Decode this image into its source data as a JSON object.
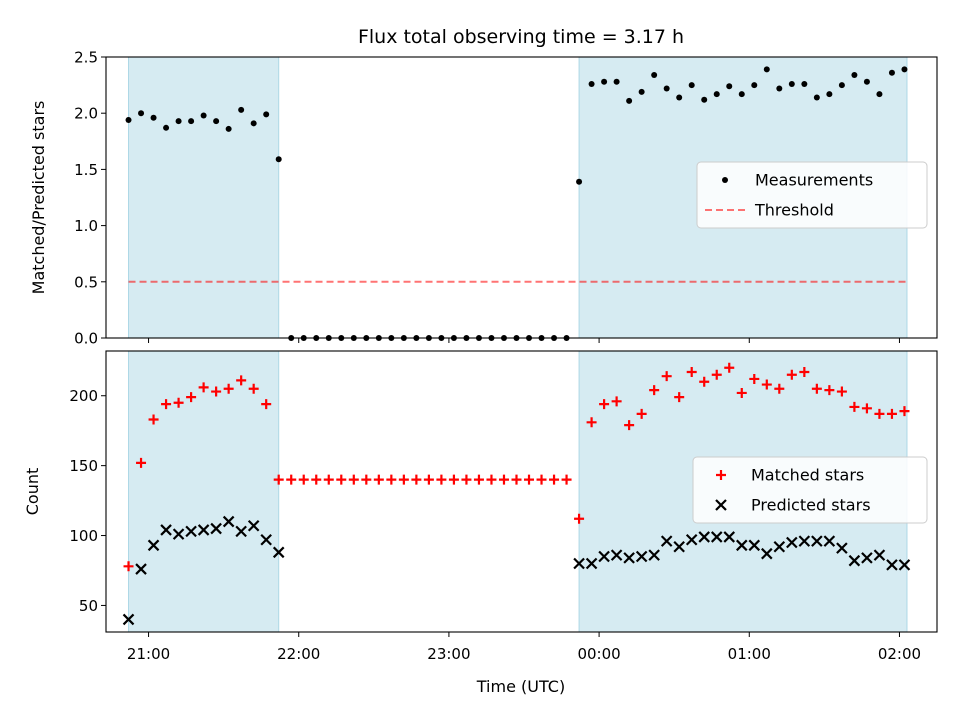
{
  "figure": {
    "title": "Flux total observing time = 3.17 h",
    "xlabel": "Time (UTC)"
  },
  "colors": {
    "band": "#add8e6",
    "band_opacity": 0.5,
    "threshold": "#ff0000",
    "matched": "#ff0000",
    "predicted": "#000000",
    "measurement": "#000000"
  },
  "chart_data": [
    {
      "type": "scatter",
      "name": "flux-ratio",
      "ylabel": "Matched/Predicted stars",
      "xlim": [
        "20:43",
        "02:15"
      ],
      "ylim": [
        0,
        2.5
      ],
      "yticks": [
        0.0,
        0.5,
        1.0,
        1.5,
        2.0,
        2.5
      ],
      "ytick_labels": [
        "0.0",
        "0.5",
        "1.0",
        "1.5",
        "2.0",
        "2.5"
      ],
      "xticks": [
        "21:00",
        "22:00",
        "23:00",
        "00:00",
        "01:00",
        "02:00"
      ],
      "xtick_labels": [],
      "shaded_intervals": [
        [
          "20:52",
          "21:52"
        ],
        [
          "23:52",
          "02:03"
        ]
      ],
      "threshold": 0.5,
      "legend": {
        "position": "right",
        "entries": [
          {
            "label": "Measurements",
            "marker": "dot"
          },
          {
            "label": "Threshold",
            "marker": "dashed-line"
          }
        ]
      },
      "series": [
        {
          "name": "Measurements",
          "x": [
            "20:52",
            "20:57",
            "21:02",
            "21:07",
            "21:12",
            "21:17",
            "21:22",
            "21:27",
            "21:32",
            "21:37",
            "21:42",
            "21:47",
            "21:52",
            "21:57",
            "22:02",
            "22:07",
            "22:12",
            "22:17",
            "22:22",
            "22:27",
            "22:32",
            "22:37",
            "22:42",
            "22:47",
            "22:52",
            "22:57",
            "23:02",
            "23:07",
            "23:12",
            "23:17",
            "23:22",
            "23:27",
            "23:32",
            "23:37",
            "23:42",
            "23:47",
            "23:52",
            "23:57",
            "00:02",
            "00:07",
            "00:12",
            "00:17",
            "00:22",
            "00:27",
            "00:32",
            "00:37",
            "00:42",
            "00:47",
            "00:52",
            "00:57",
            "01:02",
            "01:07",
            "01:12",
            "01:17",
            "01:22",
            "01:27",
            "01:32",
            "01:37",
            "01:42",
            "01:47",
            "01:52",
            "01:57",
            "02:02"
          ],
          "y": [
            1.94,
            2.0,
            1.96,
            1.87,
            1.93,
            1.93,
            1.98,
            1.93,
            1.86,
            2.03,
            1.91,
            1.99,
            1.59,
            0,
            0,
            0,
            0,
            0,
            0,
            0,
            0,
            0,
            0,
            0,
            0,
            0,
            0,
            0,
            0,
            0,
            0,
            0,
            0,
            0,
            0,
            0,
            1.39,
            2.26,
            2.28,
            2.28,
            2.11,
            2.19,
            2.34,
            2.22,
            2.14,
            2.25,
            2.12,
            2.17,
            2.24,
            2.17,
            2.25,
            2.39,
            2.22,
            2.26,
            2.26,
            2.14,
            2.17,
            2.25,
            2.34,
            2.28,
            2.17,
            2.36,
            2.39
          ]
        }
      ]
    },
    {
      "type": "scatter",
      "name": "counts",
      "ylabel": "Count",
      "xlim": [
        "20:43",
        "02:15"
      ],
      "ylim": [
        31,
        232
      ],
      "yticks": [
        50,
        100,
        150,
        200
      ],
      "ytick_labels": [
        "50",
        "100",
        "150",
        "200"
      ],
      "xticks": [
        "21:00",
        "22:00",
        "23:00",
        "00:00",
        "01:00",
        "02:00"
      ],
      "xtick_labels": [
        "21:00",
        "22:00",
        "23:00",
        "00:00",
        "01:00",
        "02:00"
      ],
      "shaded_intervals": [
        [
          "20:52",
          "21:52"
        ],
        [
          "23:52",
          "02:03"
        ]
      ],
      "legend": {
        "position": "right",
        "entries": [
          {
            "label": "Matched stars",
            "marker": "plus"
          },
          {
            "label": "Predicted stars",
            "marker": "x"
          }
        ]
      },
      "series": [
        {
          "name": "Matched stars",
          "marker": "plus",
          "x": [
            "20:52",
            "20:57",
            "21:02",
            "21:07",
            "21:12",
            "21:17",
            "21:22",
            "21:27",
            "21:32",
            "21:37",
            "21:42",
            "21:47",
            "21:52",
            "21:57",
            "22:02",
            "22:07",
            "22:12",
            "22:17",
            "22:22",
            "22:27",
            "22:32",
            "22:37",
            "22:42",
            "22:47",
            "22:52",
            "22:57",
            "23:02",
            "23:07",
            "23:12",
            "23:17",
            "23:22",
            "23:27",
            "23:32",
            "23:37",
            "23:42",
            "23:47",
            "23:52",
            "23:57",
            "00:02",
            "00:07",
            "00:12",
            "00:17",
            "00:22",
            "00:27",
            "00:32",
            "00:37",
            "00:42",
            "00:47",
            "00:52",
            "00:57",
            "01:02",
            "01:07",
            "01:12",
            "01:17",
            "01:22",
            "01:27",
            "01:32",
            "01:37",
            "01:42",
            "01:47",
            "01:52",
            "01:57",
            "02:02"
          ],
          "y": [
            78,
            152,
            183,
            194,
            195,
            199,
            206,
            203,
            205,
            211,
            205,
            194,
            140,
            140,
            140,
            140,
            140,
            140,
            140,
            140,
            140,
            140,
            140,
            140,
            140,
            140,
            140,
            140,
            140,
            140,
            140,
            140,
            140,
            140,
            140,
            140,
            112,
            181,
            194,
            196,
            179,
            187,
            204,
            214,
            199,
            217,
            210,
            215,
            220,
            202,
            212,
            208,
            205,
            215,
            217,
            205,
            204,
            203,
            192,
            191,
            187,
            187,
            189
          ]
        },
        {
          "name": "Predicted stars",
          "marker": "x",
          "x": [
            "20:52",
            "20:57",
            "21:02",
            "21:07",
            "21:12",
            "21:17",
            "21:22",
            "21:27",
            "21:32",
            "21:37",
            "21:42",
            "21:47",
            "21:52",
            "23:52",
            "23:57",
            "00:02",
            "00:07",
            "00:12",
            "00:17",
            "00:22",
            "00:27",
            "00:32",
            "00:37",
            "00:42",
            "00:47",
            "00:52",
            "00:57",
            "01:02",
            "01:07",
            "01:12",
            "01:17",
            "01:22",
            "01:27",
            "01:32",
            "01:37",
            "01:42",
            "01:47",
            "01:52",
            "01:57",
            "02:02"
          ],
          "y": [
            40,
            76,
            93,
            104,
            101,
            103,
            104,
            105,
            110,
            103,
            107,
            97,
            88,
            80,
            80,
            85,
            86,
            84,
            85,
            86,
            96,
            92,
            97,
            99,
            99,
            99,
            93,
            93,
            87,
            92,
            95,
            96,
            96,
            96,
            91,
            82,
            84,
            86,
            79,
            79
          ]
        }
      ]
    }
  ]
}
